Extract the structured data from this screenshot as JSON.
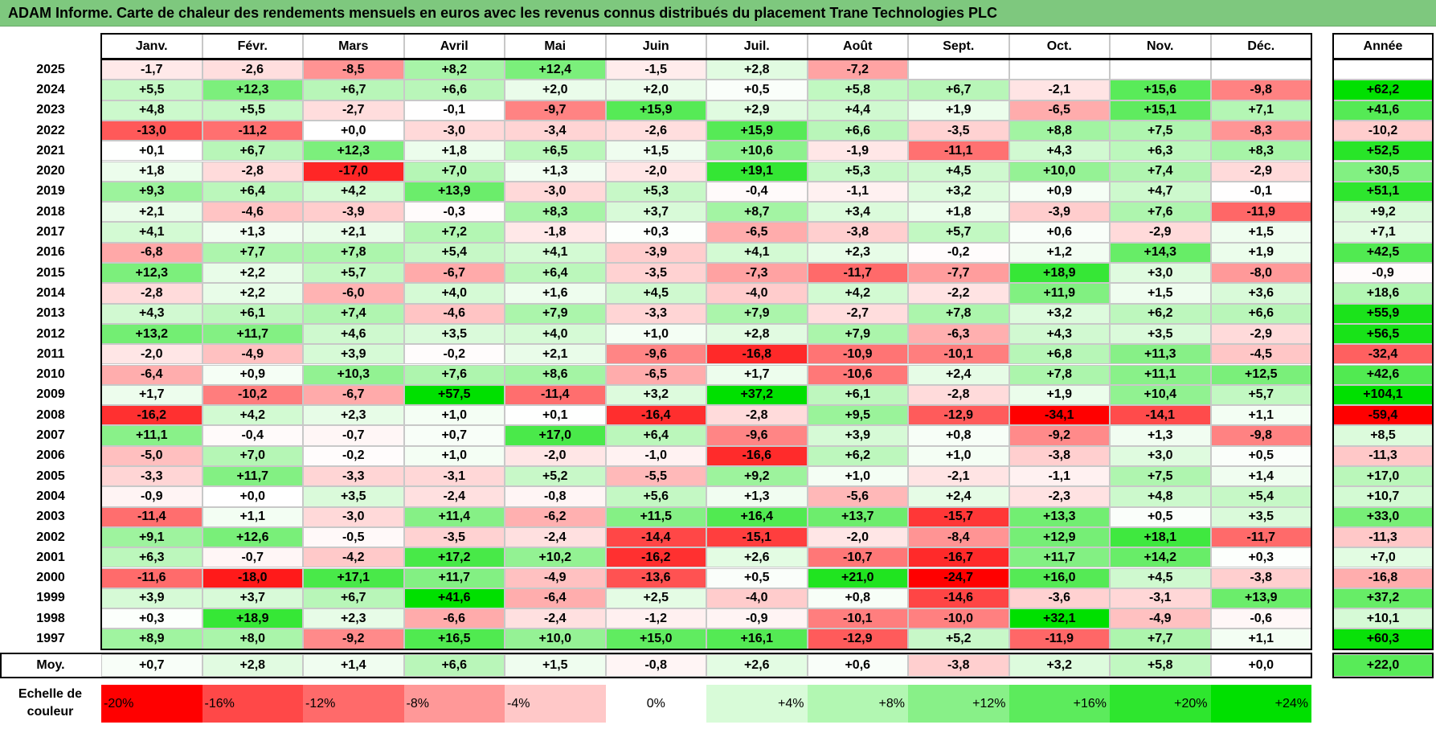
{
  "title": "ADAM Informe. Carte de chaleur des rendements mensuels en euros avec les revenus connus distribués du placement Trane Technologies PLC",
  "chart_data": {
    "type": "heatmap",
    "title": "ADAM Informe. Carte de chaleur des rendements mensuels en euros avec les revenus connus distribués du placement Trane Technologies PLC",
    "months": [
      "Janv.",
      "Févr.",
      "Mars",
      "Avril",
      "Mai",
      "Juin",
      "Juil.",
      "Août",
      "Sept.",
      "Oct.",
      "Nov.",
      "Déc."
    ],
    "year_header": "Année",
    "rows": [
      {
        "year": "2025",
        "months": [
          "-1,7",
          "-2,6",
          "-8,5",
          "+8,2",
          "+12,4",
          "-1,5",
          "+2,8",
          "-7,2",
          "",
          "",
          "",
          ""
        ],
        "annual": ""
      },
      {
        "year": "2024",
        "months": [
          "+5,5",
          "+12,3",
          "+6,7",
          "+6,6",
          "+2,0",
          "+2,0",
          "+0,5",
          "+5,8",
          "+6,7",
          "-2,1",
          "+15,6",
          "-9,8"
        ],
        "annual": "+62,2"
      },
      {
        "year": "2023",
        "months": [
          "+4,8",
          "+5,5",
          "-2,7",
          "-0,1",
          "-9,7",
          "+15,9",
          "+2,9",
          "+4,4",
          "+1,9",
          "-6,5",
          "+15,1",
          "+7,1"
        ],
        "annual": "+41,6"
      },
      {
        "year": "2022",
        "months": [
          "-13,0",
          "-11,2",
          "+0,0",
          "-3,0",
          "-3,4",
          "-2,6",
          "+15,9",
          "+6,6",
          "-3,5",
          "+8,8",
          "+7,5",
          "-8,3"
        ],
        "annual": "-10,2"
      },
      {
        "year": "2021",
        "months": [
          "+0,1",
          "+6,7",
          "+12,3",
          "+1,8",
          "+6,5",
          "+1,5",
          "+10,6",
          "-1,9",
          "-11,1",
          "+4,3",
          "+6,3",
          "+8,3"
        ],
        "annual": "+52,5"
      },
      {
        "year": "2020",
        "months": [
          "+1,8",
          "-2,8",
          "-17,0",
          "+7,0",
          "+1,3",
          "-2,0",
          "+19,1",
          "+5,3",
          "+4,5",
          "+10,0",
          "+7,4",
          "-2,9"
        ],
        "annual": "+30,5"
      },
      {
        "year": "2019",
        "months": [
          "+9,3",
          "+6,4",
          "+4,2",
          "+13,9",
          "-3,0",
          "+5,3",
          "-0,4",
          "-1,1",
          "+3,2",
          "+0,9",
          "+4,7",
          "-0,1"
        ],
        "annual": "+51,1"
      },
      {
        "year": "2018",
        "months": [
          "+2,1",
          "-4,6",
          "-3,9",
          "-0,3",
          "+8,3",
          "+3,7",
          "+8,7",
          "+3,4",
          "+1,8",
          "-3,9",
          "+7,6",
          "-11,9"
        ],
        "annual": "+9,2"
      },
      {
        "year": "2017",
        "months": [
          "+4,1",
          "+1,3",
          "+2,1",
          "+7,2",
          "-1,8",
          "+0,3",
          "-6,5",
          "-3,8",
          "+5,7",
          "+0,6",
          "-2,9",
          "+1,5"
        ],
        "annual": "+7,1"
      },
      {
        "year": "2016",
        "months": [
          "-6,8",
          "+7,7",
          "+7,8",
          "+5,4",
          "+4,1",
          "-3,9",
          "+4,1",
          "+2,3",
          "-0,2",
          "+1,2",
          "+14,3",
          "+1,9"
        ],
        "annual": "+42,5"
      },
      {
        "year": "2015",
        "months": [
          "+12,3",
          "+2,2",
          "+5,7",
          "-6,7",
          "+6,4",
          "-3,5",
          "-7,3",
          "-11,7",
          "-7,7",
          "+18,9",
          "+3,0",
          "-8,0"
        ],
        "annual": "-0,9"
      },
      {
        "year": "2014",
        "months": [
          "-2,8",
          "+2,2",
          "-6,0",
          "+4,0",
          "+1,6",
          "+4,5",
          "-4,0",
          "+4,2",
          "-2,2",
          "+11,9",
          "+1,5",
          "+3,6"
        ],
        "annual": "+18,6"
      },
      {
        "year": "2013",
        "months": [
          "+4,3",
          "+6,1",
          "+7,4",
          "-4,6",
          "+7,9",
          "-3,3",
          "+7,9",
          "-2,7",
          "+7,8",
          "+3,2",
          "+6,2",
          "+6,6"
        ],
        "annual": "+55,9"
      },
      {
        "year": "2012",
        "months": [
          "+13,2",
          "+11,7",
          "+4,6",
          "+3,5",
          "+4,0",
          "+1,0",
          "+2,8",
          "+7,9",
          "-6,3",
          "+4,3",
          "+3,5",
          "-2,9"
        ],
        "annual": "+56,5"
      },
      {
        "year": "2011",
        "months": [
          "-2,0",
          "-4,9",
          "+3,9",
          "-0,2",
          "+2,1",
          "-9,6",
          "-16,8",
          "-10,9",
          "-10,1",
          "+6,8",
          "+11,3",
          "-4,5"
        ],
        "annual": "-32,4"
      },
      {
        "year": "2010",
        "months": [
          "-6,4",
          "+0,9",
          "+10,3",
          "+7,6",
          "+8,6",
          "-6,5",
          "+1,7",
          "-10,6",
          "+2,4",
          "+7,8",
          "+11,1",
          "+12,5"
        ],
        "annual": "+42,6"
      },
      {
        "year": "2009",
        "months": [
          "+1,7",
          "-10,2",
          "-6,7",
          "+57,5",
          "-11,4",
          "+3,2",
          "+37,2",
          "+6,1",
          "-2,8",
          "+1,9",
          "+10,4",
          "+5,7"
        ],
        "annual": "+104,1"
      },
      {
        "year": "2008",
        "months": [
          "-16,2",
          "+4,2",
          "+2,3",
          "+1,0",
          "+0,1",
          "-16,4",
          "-2,8",
          "+9,5",
          "-12,9",
          "-34,1",
          "-14,1",
          "+1,1"
        ],
        "annual": "-59,4"
      },
      {
        "year": "2007",
        "months": [
          "+11,1",
          "-0,4",
          "-0,7",
          "+0,7",
          "+17,0",
          "+6,4",
          "-9,6",
          "+3,9",
          "+0,8",
          "-9,2",
          "+1,3",
          "-9,8"
        ],
        "annual": "+8,5"
      },
      {
        "year": "2006",
        "months": [
          "-5,0",
          "+7,0",
          "-0,2",
          "+1,0",
          "-2,0",
          "-1,0",
          "-16,6",
          "+6,2",
          "+1,0",
          "-3,8",
          "+3,0",
          "+0,5"
        ],
        "annual": "-11,3"
      },
      {
        "year": "2005",
        "months": [
          "-3,3",
          "+11,7",
          "-3,3",
          "-3,1",
          "+5,2",
          "-5,5",
          "+9,2",
          "+1,0",
          "-2,1",
          "-1,1",
          "+7,5",
          "+1,4"
        ],
        "annual": "+17,0"
      },
      {
        "year": "2004",
        "months": [
          "-0,9",
          "+0,0",
          "+3,5",
          "-2,4",
          "-0,8",
          "+5,6",
          "+1,3",
          "-5,6",
          "+2,4",
          "-2,3",
          "+4,8",
          "+5,4"
        ],
        "annual": "+10,7"
      },
      {
        "year": "2003",
        "months": [
          "-11,4",
          "+1,1",
          "-3,0",
          "+11,4",
          "-6,2",
          "+11,5",
          "+16,4",
          "+13,7",
          "-15,7",
          "+13,3",
          "+0,5",
          "+3,5"
        ],
        "annual": "+33,0"
      },
      {
        "year": "2002",
        "months": [
          "+9,1",
          "+12,6",
          "-0,5",
          "-3,5",
          "-2,4",
          "-14,4",
          "-15,1",
          "-2,0",
          "-8,4",
          "+12,9",
          "+18,1",
          "-11,7"
        ],
        "annual": "-11,3"
      },
      {
        "year": "2001",
        "months": [
          "+6,3",
          "-0,7",
          "-4,2",
          "+17,2",
          "+10,2",
          "-16,2",
          "+2,6",
          "-10,7",
          "-16,7",
          "+11,7",
          "+14,2",
          "+0,3"
        ],
        "annual": "+7,0"
      },
      {
        "year": "2000",
        "months": [
          "-11,6",
          "-18,0",
          "+17,1",
          "+11,7",
          "-4,9",
          "-13,6",
          "+0,5",
          "+21,0",
          "-24,7",
          "+16,0",
          "+4,5",
          "-3,8"
        ],
        "annual": "-16,8"
      },
      {
        "year": "1999",
        "months": [
          "+3,9",
          "+3,7",
          "+6,7",
          "+41,6",
          "-6,4",
          "+2,5",
          "-4,0",
          "+0,8",
          "-14,6",
          "-3,6",
          "-3,1",
          "+13,9"
        ],
        "annual": "+37,2"
      },
      {
        "year": "1998",
        "months": [
          "+0,3",
          "+18,9",
          "+2,3",
          "-6,6",
          "-2,4",
          "-1,2",
          "-0,9",
          "-10,1",
          "-10,0",
          "+32,1",
          "-4,9",
          "-0,6"
        ],
        "annual": "+10,1"
      },
      {
        "year": "1997",
        "months": [
          "+8,9",
          "+8,0",
          "-9,2",
          "+16,5",
          "+10,0",
          "+15,0",
          "+16,1",
          "-12,9",
          "+5,2",
          "-11,9",
          "+7,7",
          "+1,1"
        ],
        "annual": "+60,3"
      }
    ],
    "average": {
      "label": "Moy.",
      "months": [
        "+0,7",
        "+2,8",
        "+1,4",
        "+6,6",
        "+1,5",
        "-0,8",
        "+2,6",
        "+0,6",
        "-3,8",
        "+3,2",
        "+5,8",
        "+0,0"
      ],
      "annual": "+22,0"
    },
    "color_scale": {
      "label": "Echelle de\ncouleur",
      "stops": [
        "-20%",
        "-16%",
        "-12%",
        "-8%",
        "-4%",
        "0%",
        "+4%",
        "+8%",
        "+12%",
        "+16%",
        "+20%",
        "+24%"
      ],
      "stop_values": [
        -20,
        -16,
        -12,
        -8,
        -4,
        0,
        4,
        8,
        12,
        16,
        20,
        24
      ],
      "colors": [
        "#ff0000",
        "#ff4848",
        "#ff6a6a",
        "#ff9898",
        "#ffc8c8",
        "#ffffff",
        "#d8fbd8",
        "#b2f7b2",
        "#88f088",
        "#5ceb5c",
        "#2ee62e",
        "#00e000"
      ]
    }
  }
}
